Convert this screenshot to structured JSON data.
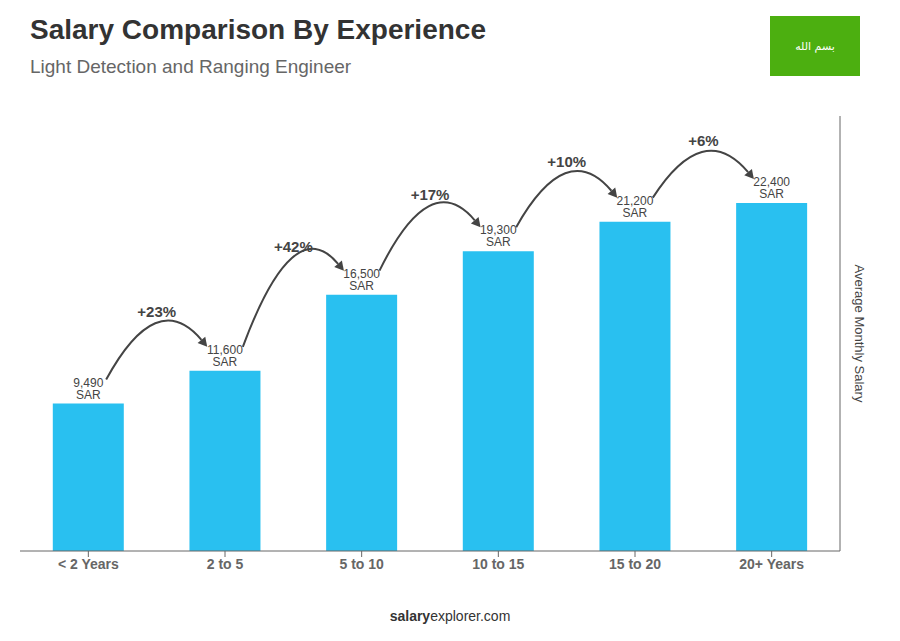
{
  "chart_data": {
    "type": "bar",
    "title": "Salary Comparison By Experience",
    "subtitle": "Light Detection and Ranging Engineer",
    "categories": [
      "< 2 Years",
      "2 to 5",
      "5 to 10",
      "10 to 15",
      "15 to 20",
      "20+ Years"
    ],
    "values": [
      9490,
      11600,
      16500,
      19300,
      21200,
      22400
    ],
    "value_labels": [
      "9,490 SAR",
      "11,600 SAR",
      "16,500 SAR",
      "19,300 SAR",
      "21,200 SAR",
      "22,400 SAR"
    ],
    "data_labels": true,
    "color": "#29c0f0",
    "y_label": "Average Monthly Salary",
    "ylim": [
      0,
      28000
    ],
    "tick_labels": "x",
    "grid": false,
    "annotations": [
      "+23%",
      "+42%",
      "+17%",
      "+10%",
      "+6%"
    ],
    "footer": [
      "salary",
      "explorer.com"
    ],
    "flag": {
      "text": "بسم الله",
      "color": "#4caf10"
    }
  }
}
